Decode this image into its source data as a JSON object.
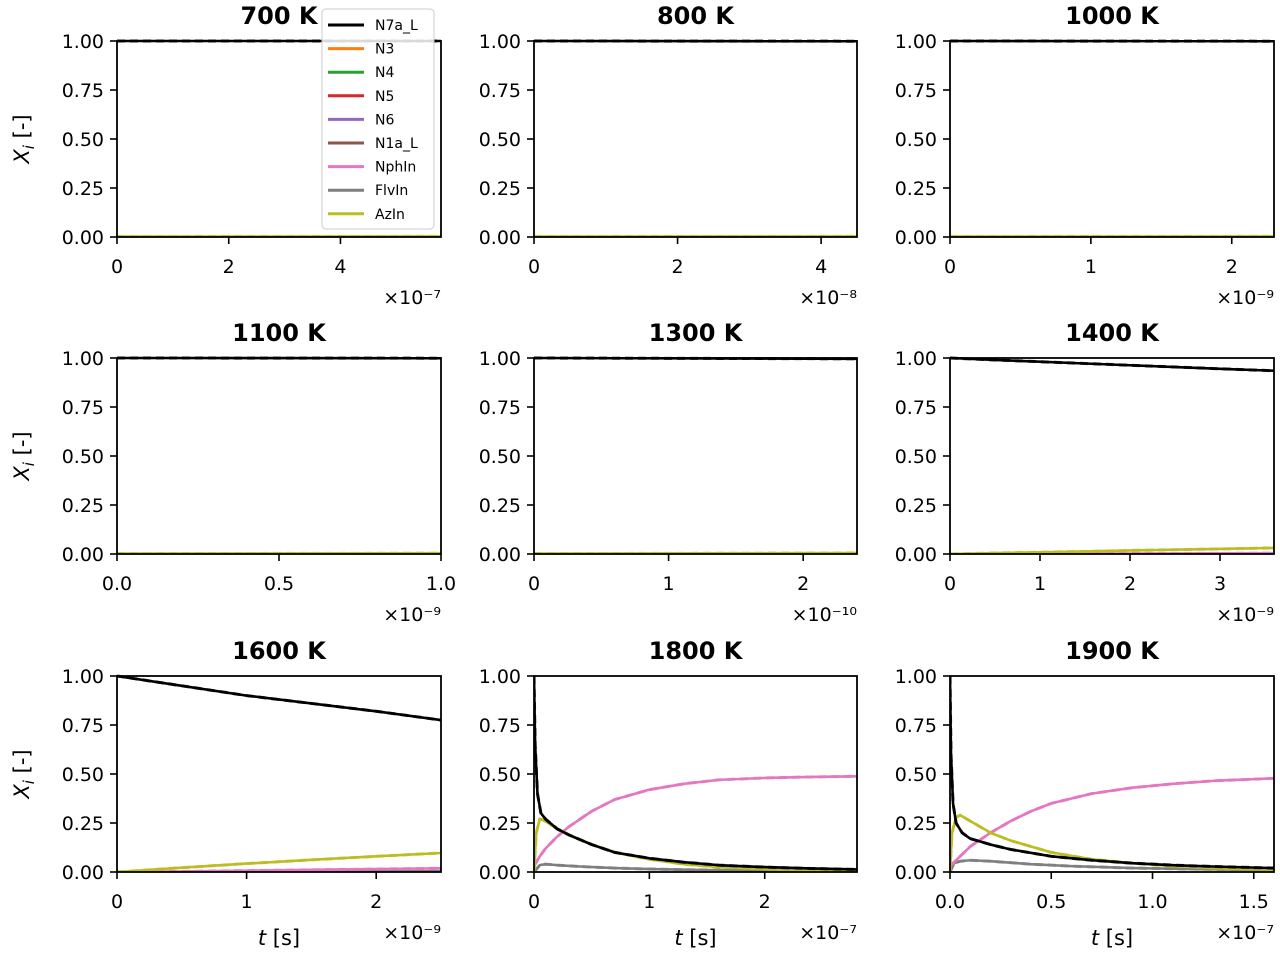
{
  "chart_data": {
    "type": "line",
    "legend": {
      "placement": "top-left, inside first panel",
      "entries": [
        {
          "label": "N7a_L",
          "color": "#000000"
        },
        {
          "label": "N3",
          "color": "#ff7f0e"
        },
        {
          "label": "N4",
          "color": "#2ca02c"
        },
        {
          "label": "N5",
          "color": "#d62728"
        },
        {
          "label": "N6",
          "color": "#9467bd"
        },
        {
          "label": "N1a_L",
          "color": "#8c564b"
        },
        {
          "label": "NphIn",
          "color": "#e377c2"
        },
        {
          "label": "FlvIn",
          "color": "#7f7f7f"
        },
        {
          "label": "AzIn",
          "color": "#bcbd22"
        }
      ]
    },
    "ylabel": "X_i [-]",
    "xlabel": "t [s]",
    "grid": false,
    "yticks": [
      "0.00",
      "0.25",
      "0.50",
      "0.75",
      "1.00"
    ],
    "panels": [
      {
        "title": "700 K",
        "xlim": [
          0,
          5.8
        ],
        "exp_label": "×10⁻⁷",
        "xticks": [
          "0",
          "2",
          "4"
        ],
        "xtick_values": [
          0,
          2,
          4
        ],
        "series": [
          {
            "name": "N7a_L",
            "x": [
              0,
              5.8
            ],
            "y": [
              1.0,
              1.0
            ]
          },
          {
            "name": "AzIn",
            "x": [
              0,
              5.8
            ],
            "y": [
              0.002,
              0.003
            ]
          }
        ]
      },
      {
        "title": "800 K",
        "xlim": [
          0,
          4.5
        ],
        "exp_label": "×10⁻⁸",
        "xticks": [
          "0",
          "2",
          "4"
        ],
        "xtick_values": [
          0,
          2,
          4
        ],
        "series": [
          {
            "name": "N7a_L",
            "x": [
              0,
              4.5
            ],
            "y": [
              1.0,
              0.999
            ]
          },
          {
            "name": "AzIn",
            "x": [
              0,
              4.5
            ],
            "y": [
              0.002,
              0.003
            ]
          }
        ]
      },
      {
        "title": "1000 K",
        "xlim": [
          0,
          2.3
        ],
        "exp_label": "×10⁻⁹",
        "xticks": [
          "0",
          "1",
          "2"
        ],
        "xtick_values": [
          0,
          1,
          2
        ],
        "series": [
          {
            "name": "N7a_L",
            "x": [
              0,
              2.3
            ],
            "y": [
              1.0,
              0.999
            ]
          },
          {
            "name": "AzIn",
            "x": [
              0,
              2.3
            ],
            "y": [
              0.002,
              0.003
            ]
          }
        ]
      },
      {
        "title": "1100 K",
        "xlim": [
          0,
          1.0
        ],
        "exp_label": "×10⁻⁹",
        "xticks": [
          "0.0",
          "0.5",
          "1.0"
        ],
        "xtick_values": [
          0,
          0.5,
          1.0
        ],
        "series": [
          {
            "name": "N7a_L",
            "x": [
              0,
              1.0
            ],
            "y": [
              1.0,
              0.999
            ]
          },
          {
            "name": "AzIn",
            "x": [
              0,
              1.0
            ],
            "y": [
              0.002,
              0.004
            ]
          }
        ]
      },
      {
        "title": "1300 K",
        "xlim": [
          0,
          2.4
        ],
        "exp_label": "×10⁻¹⁰",
        "xticks": [
          "0",
          "1",
          "2"
        ],
        "xtick_values": [
          0,
          1,
          2
        ],
        "series": [
          {
            "name": "N7a_L",
            "x": [
              0,
              2.4
            ],
            "y": [
              1.0,
              0.996
            ]
          },
          {
            "name": "AzIn",
            "x": [
              0,
              2.4
            ],
            "y": [
              0.002,
              0.005
            ]
          }
        ]
      },
      {
        "title": "1400 K",
        "xlim": [
          0,
          3.6
        ],
        "exp_label": "×10⁻⁹",
        "xticks": [
          "0",
          "1",
          "2",
          "3"
        ],
        "xtick_values": [
          0,
          1,
          2,
          3
        ],
        "series": [
          {
            "name": "N7a_L",
            "x": [
              0,
              0.5,
              1,
              1.5,
              2,
              2.5,
              3,
              3.6
            ],
            "y": [
              1.0,
              0.99,
              0.981,
              0.972,
              0.963,
              0.954,
              0.945,
              0.935
            ]
          },
          {
            "name": "NphIn",
            "x": [
              0,
              3.6
            ],
            "y": [
              0.0,
              0.004
            ]
          },
          {
            "name": "AzIn",
            "x": [
              0,
              0.5,
              1,
              1.5,
              2,
              2.5,
              3,
              3.6
            ],
            "y": [
              0.0,
              0.005,
              0.009,
              0.013,
              0.018,
              0.022,
              0.026,
              0.031
            ]
          }
        ]
      },
      {
        "title": "1600 K",
        "xlim": [
          0,
          2.5
        ],
        "exp_label": "×10⁻⁹",
        "xticks": [
          "0",
          "1",
          "2"
        ],
        "xtick_values": [
          0,
          1,
          2
        ],
        "series": [
          {
            "name": "N7a_L",
            "x": [
              0,
              0.5,
              1,
              1.5,
              2,
              2.5
            ],
            "y": [
              1.0,
              0.95,
              0.9,
              0.86,
              0.82,
              0.775
            ]
          },
          {
            "name": "NphIn",
            "x": [
              0,
              0.5,
              1,
              1.5,
              2,
              2.5
            ],
            "y": [
              0.0,
              0.003,
              0.007,
              0.011,
              0.015,
              0.019
            ]
          },
          {
            "name": "FlvIn",
            "x": [
              0,
              2.5
            ],
            "y": [
              0.0,
              0.004
            ]
          },
          {
            "name": "AzIn",
            "x": [
              0,
              0.5,
              1,
              1.5,
              2,
              2.5
            ],
            "y": [
              0.0,
              0.022,
              0.043,
              0.062,
              0.08,
              0.097
            ]
          }
        ]
      },
      {
        "title": "1800 K",
        "xlim": [
          0,
          2.8
        ],
        "exp_label": "×10⁻⁷",
        "xticks": [
          "0",
          "1",
          "2"
        ],
        "xtick_values": [
          0,
          1,
          2
        ],
        "series": [
          {
            "name": "N7a_L",
            "x": [
              0,
              0.01,
              0.03,
              0.06,
              0.1,
              0.2,
              0.3,
              0.5,
              0.7,
              1.0,
              1.3,
              1.6,
              2.0,
              2.4,
              2.8
            ],
            "y": [
              1.0,
              0.65,
              0.4,
              0.3,
              0.27,
              0.22,
              0.19,
              0.14,
              0.1,
              0.07,
              0.05,
              0.035,
              0.025,
              0.018,
              0.013
            ]
          },
          {
            "name": "NphIn",
            "x": [
              0,
              0.05,
              0.1,
              0.2,
              0.3,
              0.5,
              0.7,
              1.0,
              1.3,
              1.6,
              2.0,
              2.4,
              2.8
            ],
            "y": [
              0.03,
              0.08,
              0.12,
              0.18,
              0.23,
              0.31,
              0.37,
              0.42,
              0.45,
              0.47,
              0.48,
              0.485,
              0.488
            ]
          },
          {
            "name": "FlvIn",
            "x": [
              0,
              0.05,
              0.1,
              0.2,
              0.4,
              0.7,
              1.0,
              1.5,
              2.0,
              2.8
            ],
            "y": [
              0.0,
              0.035,
              0.04,
              0.035,
              0.028,
              0.02,
              0.015,
              0.01,
              0.007,
              0.005
            ]
          },
          {
            "name": "AzIn",
            "x": [
              0,
              0.02,
              0.05,
              0.08,
              0.15,
              0.3,
              0.5,
              0.7,
              1.0,
              1.3,
              1.6,
              2.0,
              2.4,
              2.8
            ],
            "y": [
              0.0,
              0.2,
              0.27,
              0.265,
              0.24,
              0.19,
              0.14,
              0.1,
              0.065,
              0.04,
              0.025,
              0.015,
              0.01,
              0.008
            ]
          }
        ]
      },
      {
        "title": "1900 K",
        "xlim": [
          0,
          1.6
        ],
        "exp_label": "×10⁻⁷",
        "xticks": [
          "0.0",
          "0.5",
          "1.0",
          "1.5"
        ],
        "xtick_values": [
          0,
          0.5,
          1.0,
          1.5
        ],
        "series": [
          {
            "name": "N7a_L",
            "x": [
              0,
              0.005,
              0.015,
              0.03,
              0.06,
              0.1,
              0.2,
              0.3,
              0.5,
              0.7,
              0.9,
              1.1,
              1.3,
              1.6
            ],
            "y": [
              1.0,
              0.6,
              0.35,
              0.25,
              0.2,
              0.17,
              0.14,
              0.115,
              0.08,
              0.06,
              0.045,
              0.035,
              0.028,
              0.02
            ]
          },
          {
            "name": "NphIn",
            "x": [
              0,
              0.05,
              0.1,
              0.2,
              0.3,
              0.4,
              0.5,
              0.7,
              0.9,
              1.1,
              1.3,
              1.6
            ],
            "y": [
              0.03,
              0.08,
              0.13,
              0.2,
              0.26,
              0.31,
              0.35,
              0.4,
              0.43,
              0.45,
              0.465,
              0.478
            ]
          },
          {
            "name": "FlvIn",
            "x": [
              0,
              0.02,
              0.05,
              0.1,
              0.2,
              0.4,
              0.6,
              0.9,
              1.2,
              1.6
            ],
            "y": [
              0.0,
              0.045,
              0.055,
              0.06,
              0.055,
              0.04,
              0.03,
              0.02,
              0.015,
              0.01
            ]
          },
          {
            "name": "AzIn",
            "x": [
              0,
              0.01,
              0.03,
              0.05,
              0.1,
              0.2,
              0.3,
              0.5,
              0.7,
              0.9,
              1.1,
              1.3,
              1.6
            ],
            "y": [
              0.0,
              0.2,
              0.28,
              0.29,
              0.26,
              0.2,
              0.16,
              0.1,
              0.065,
              0.045,
              0.03,
              0.02,
              0.012
            ]
          }
        ]
      }
    ]
  }
}
